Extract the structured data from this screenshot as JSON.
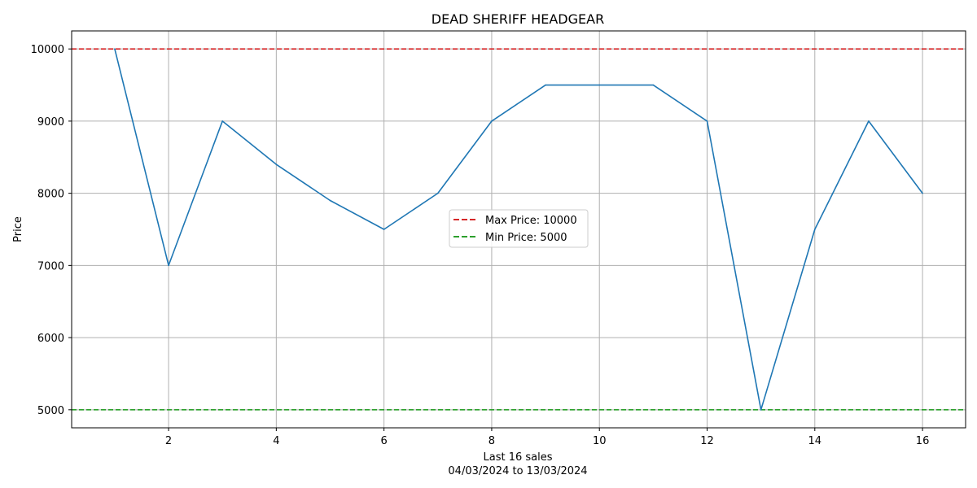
{
  "chart_data": {
    "type": "line",
    "title": "DEAD SHERIFF HEADGEAR",
    "xlabel": "Last 16 sales",
    "xlabel_sub": "04/03/2024 to 13/03/2024",
    "ylabel": "Price",
    "x": [
      1,
      2,
      3,
      4,
      5,
      6,
      7,
      8,
      9,
      10,
      11,
      12,
      13,
      14,
      15,
      16
    ],
    "series": [
      {
        "values": [
          10000,
          7000,
          9000,
          8400,
          7900,
          7500,
          8000,
          9000,
          9500,
          9500,
          9500,
          9000,
          5000,
          7500,
          9000,
          8000
        ],
        "color": "#1f77b4"
      }
    ],
    "reference_lines": [
      {
        "name": "Max Price: 10000",
        "value": 10000,
        "color": "#d62728",
        "style": "dashed"
      },
      {
        "name": "Min Price: 5000",
        "value": 5000,
        "color": "#2ca02c",
        "style": "dashed"
      }
    ],
    "xticks": [
      "2",
      "4",
      "6",
      "8",
      "10",
      "12",
      "14",
      "16"
    ],
    "yticks": [
      "5000",
      "6000",
      "7000",
      "8000",
      "9000",
      "10000"
    ],
    "xlim": [
      0.2,
      16.8
    ],
    "ylim": [
      4750,
      10250
    ],
    "grid": true,
    "legend_position": "center"
  }
}
